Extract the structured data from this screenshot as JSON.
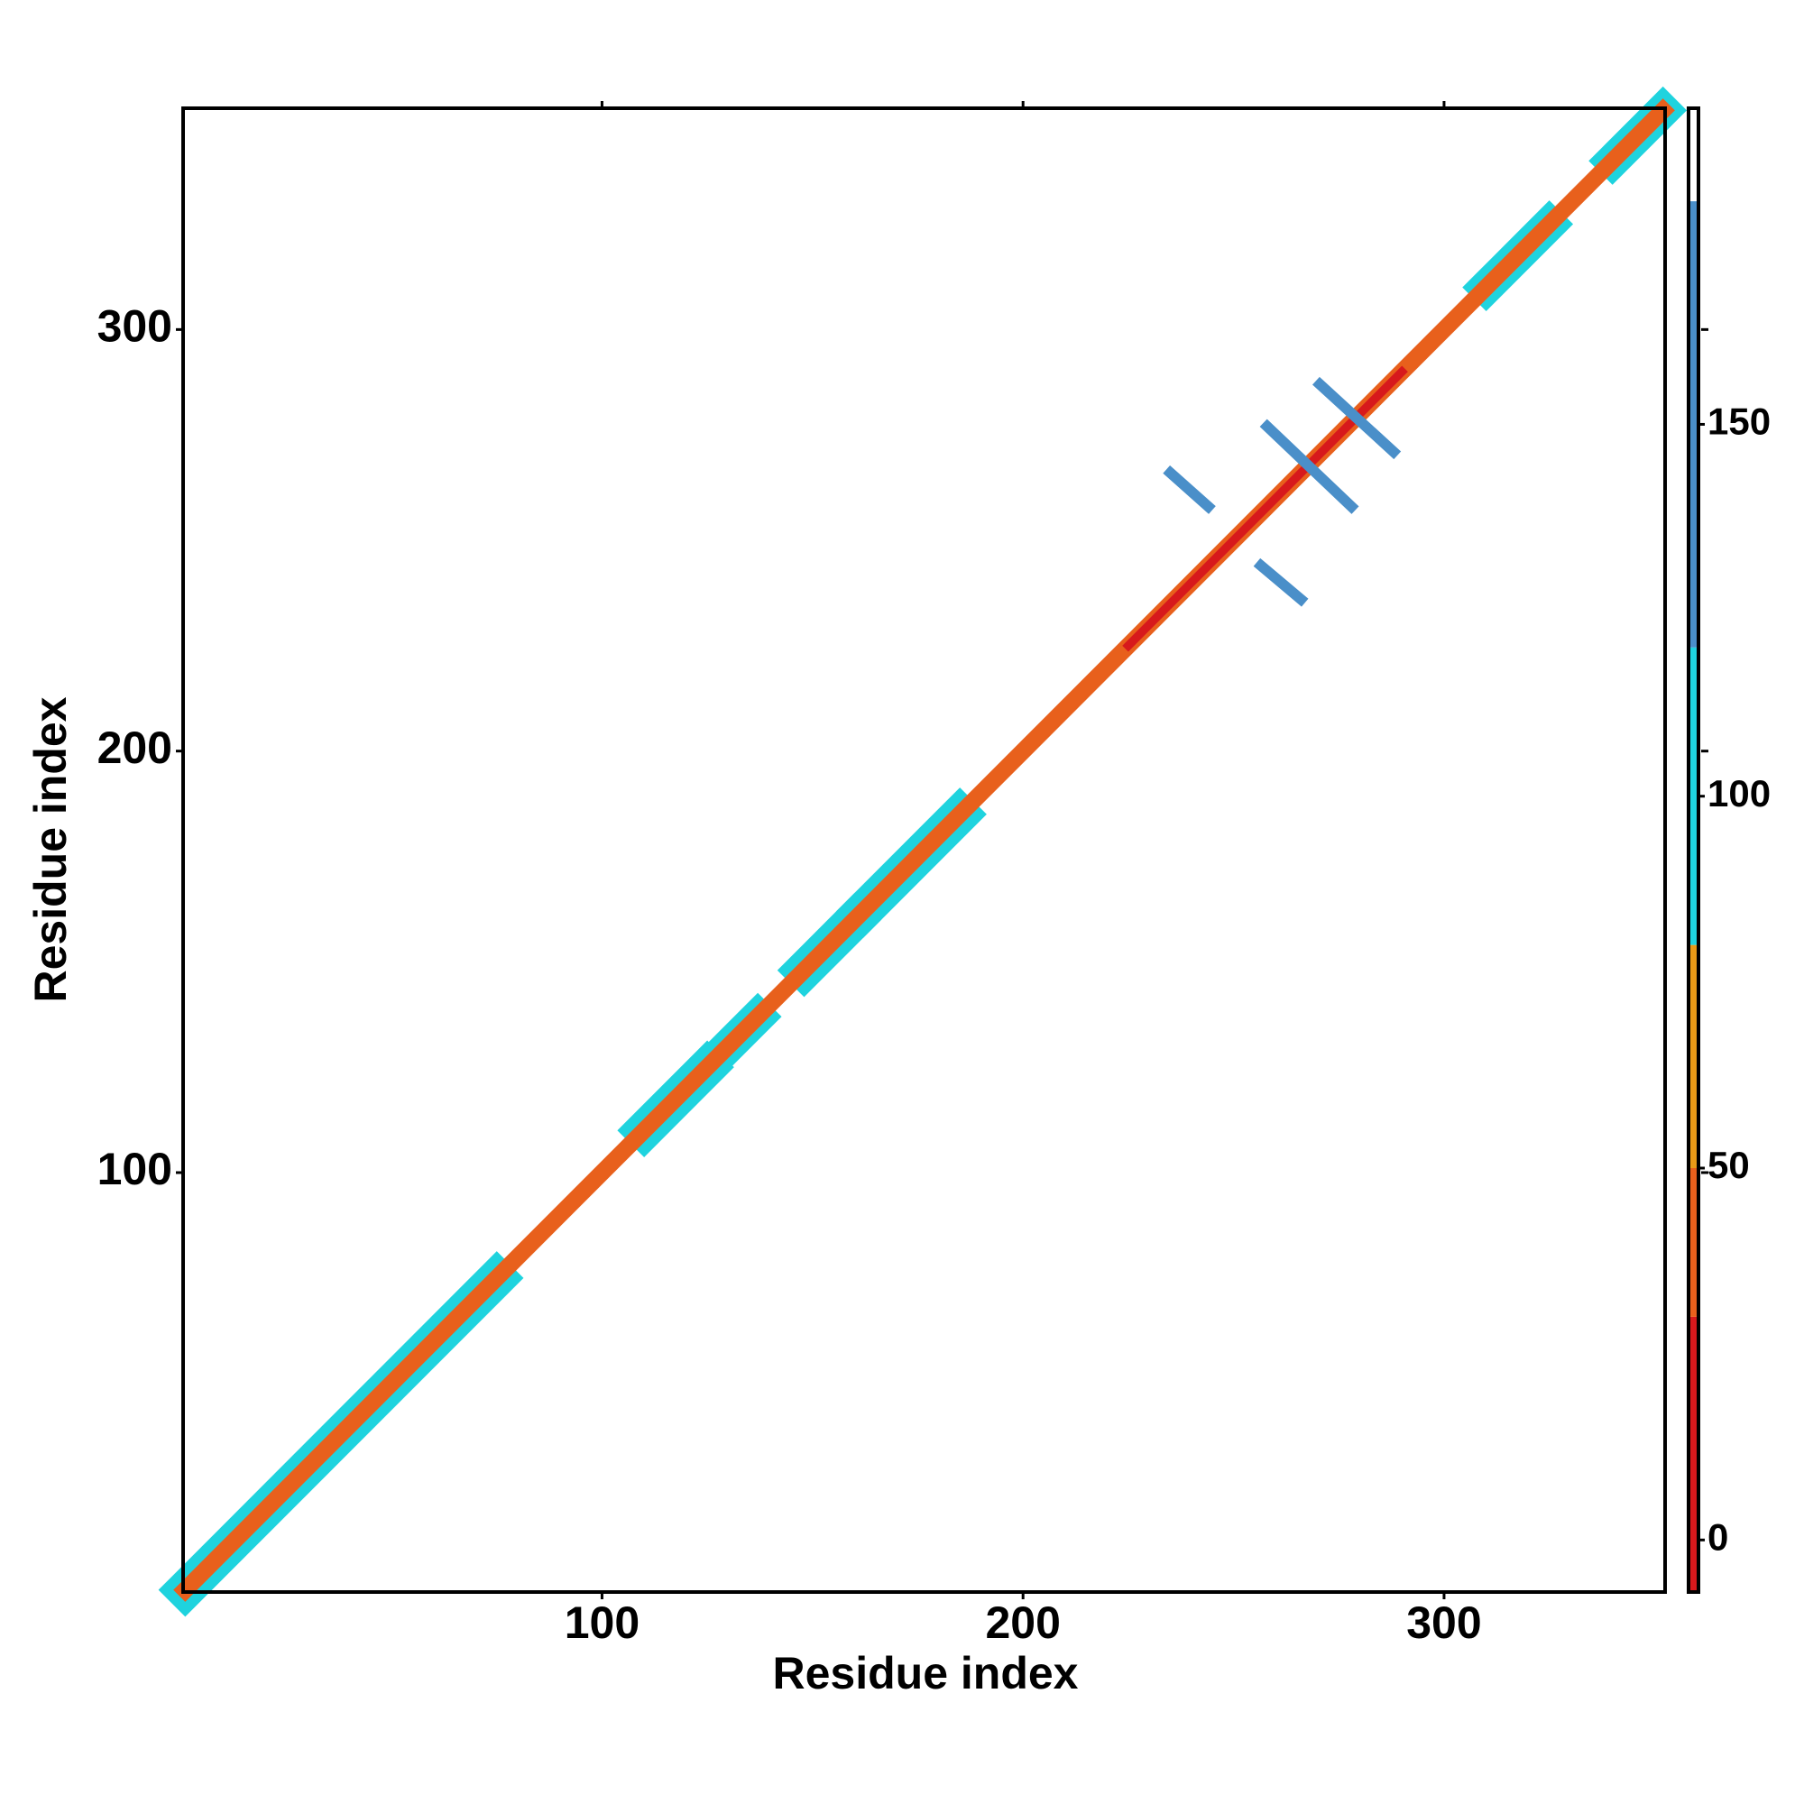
{
  "chart_data": {
    "type": "heatmap",
    "xlabel": "Residue index",
    "ylabel": "Residue index",
    "xlim": [
      0.5,
      352.5
    ],
    "ylim": [
      0.5,
      352.5
    ],
    "xticks": [
      100,
      200,
      300
    ],
    "yticks": [
      100,
      200,
      300
    ],
    "segments": [
      {
        "x": [
          1,
          75
        ],
        "y": [
          1,
          75
        ],
        "width": 9,
        "value": 100
      },
      {
        "x": [
          110,
          125
        ],
        "y": [
          110,
          125
        ],
        "width": 9,
        "value": 100
      },
      {
        "x": [
          128,
          137
        ],
        "y": [
          128,
          137
        ],
        "width": 8,
        "value": 100
      },
      {
        "x": [
          148,
          160
        ],
        "y": [
          148,
          160
        ],
        "width": 9,
        "value": 100
      },
      {
        "x": [
          162,
          185
        ],
        "y": [
          162,
          185
        ],
        "width": 9,
        "value": 100
      },
      {
        "x": [
          310,
          325
        ],
        "y": [
          310,
          325
        ],
        "width": 8,
        "value": 100
      },
      {
        "x": [
          340,
          352
        ],
        "y": [
          340,
          352
        ],
        "width": 8,
        "value": 100
      },
      {
        "x": [
          1,
          352
        ],
        "y": [
          1,
          352
        ],
        "width": 4,
        "value": 45
      },
      {
        "x": [
          225,
          290
        ],
        "y": [
          225,
          290
        ],
        "width": 2,
        "value": 5
      },
      {
        "x": [
          235,
          244
        ],
        "y": [
          266,
          258
        ],
        "width": 2.5,
        "value": 140
      },
      {
        "x": [
          256.5,
          266
        ],
        "y": [
          244,
          236
        ],
        "width": 2.5,
        "value": 140
      },
      {
        "x": [
          258,
          278
        ],
        "y": [
          277,
          258
        ],
        "width": 2.5,
        "value": 140
      },
      {
        "x": [
          270.5,
          288
        ],
        "y": [
          287,
          271
        ],
        "width": 2.5,
        "value": 140
      }
    ],
    "colorbar": {
      "lim": [
        -7,
        192.5
      ],
      "ticks": [
        0,
        50,
        100,
        150
      ],
      "levels": [
        {
          "from": -7,
          "to": 30,
          "color": "#d7191c"
        },
        {
          "from": 30,
          "to": 50,
          "color": "#e8601c"
        },
        {
          "from": 50,
          "to": 80,
          "color": "#e99a17"
        },
        {
          "from": 80,
          "to": 120,
          "color": "#1fd3de"
        },
        {
          "from": 120,
          "to": 180,
          "color": "#4a8fc9"
        },
        {
          "from": 180,
          "to": 192.5,
          "color": "#ffffff"
        }
      ]
    }
  }
}
